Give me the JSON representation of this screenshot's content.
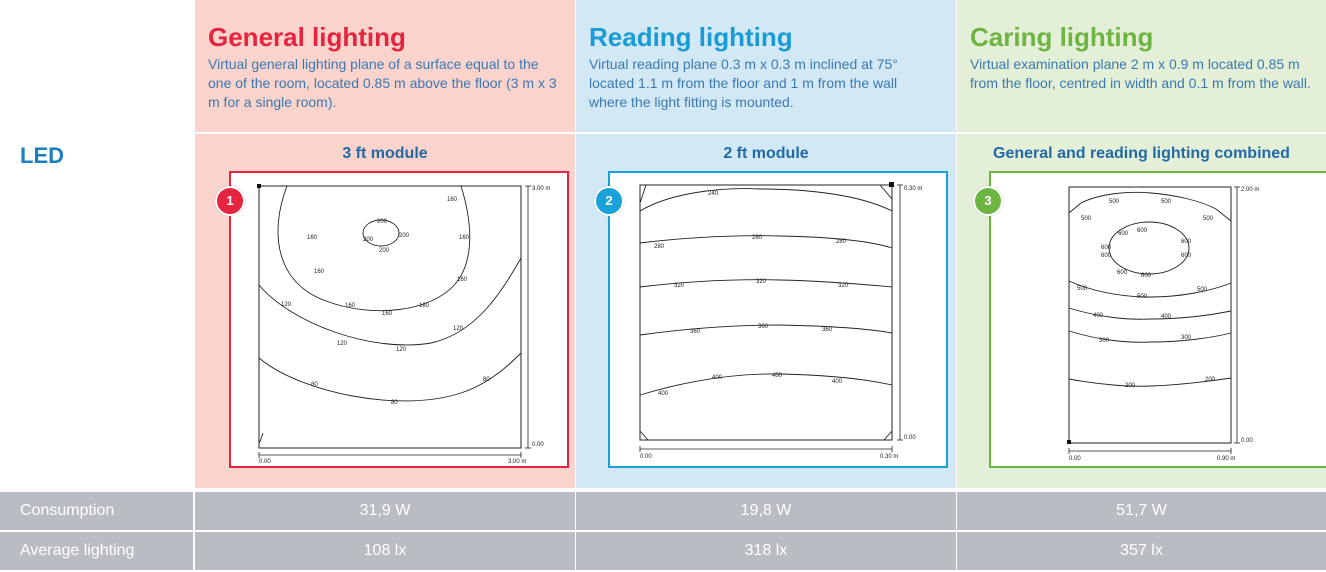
{
  "led_label": "LED",
  "columns": [
    {
      "title": "General lighting",
      "description": "Virtual general lighting plane of a surface equal to the one of the room, located 0.85 m above the floor (3 m x 3 m for a single room).",
      "module": "3 ft module",
      "badge": "1",
      "plot": {
        "y_top": "3.00 m",
        "y_bottom": "0.00",
        "x_left": "0.00",
        "x_right": "3.00 m",
        "contour_labels": [
          "160",
          "160",
          "160",
          "160",
          "160",
          "160",
          "160",
          "160",
          "200",
          "200",
          "200",
          "200",
          "120",
          "120",
          "120",
          "120",
          "80",
          "80",
          "80"
        ]
      }
    },
    {
      "title": "Reading lighting",
      "description": "Virtual reading plane 0.3 m x 0.3 m inclined at 75° located 1.1 m from the floor and 1 m from the wall where the light fitting is mounted.",
      "module": "2 ft module",
      "badge": "2",
      "plot": {
        "y_top": "0.30 m",
        "y_bottom": "0.00",
        "x_left": "0.00",
        "x_right": "0.30 m",
        "contour_labels": [
          "240",
          "280",
          "280",
          "280",
          "320",
          "320",
          "320",
          "360",
          "360",
          "360",
          "400",
          "400",
          "400",
          "400"
        ]
      }
    },
    {
      "title": "Caring lighting",
      "description": "Virtual examination plane 2 m x 0.9 m located 0.85 m from the floor, centred in width and 0.1 m from the wall.",
      "module": "General and reading lighting combined",
      "badge": "3",
      "plot": {
        "y_top": "2.00 m",
        "y_bottom": "0.00",
        "x_left": "0.00",
        "x_right": "0.90 m",
        "contour_labels": [
          "500",
          "500",
          "500",
          "500",
          "600",
          "600",
          "600",
          "600",
          "600",
          "600",
          "600",
          "600",
          "500",
          "500",
          "500",
          "400",
          "400",
          "300",
          "300",
          "200",
          "200"
        ]
      }
    }
  ],
  "rows": [
    {
      "label": "Consumption",
      "values": [
        "31,9 W",
        "19,8 W",
        "51,7 W"
      ]
    },
    {
      "label": "Average lighting",
      "values": [
        "108 lx",
        "318 lx",
        "357 lx"
      ]
    }
  ]
}
